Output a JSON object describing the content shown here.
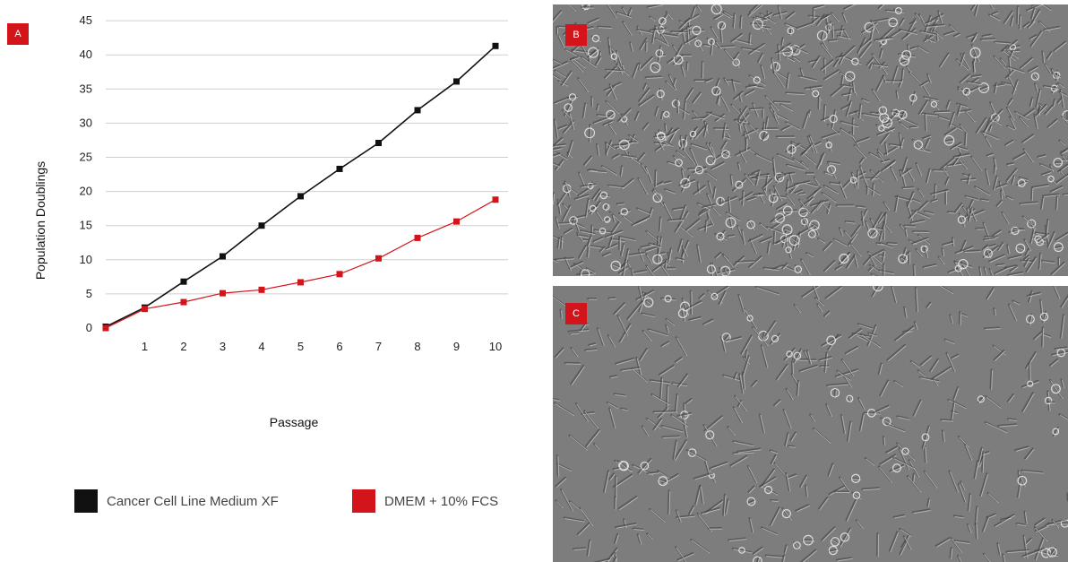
{
  "panels": {
    "a_label": "A",
    "b_label": "B",
    "c_label": "C"
  },
  "colors": {
    "series_1": "#111111",
    "series_2": "#d4141b",
    "badge": "#d4141b",
    "grid": "#cfcfcf"
  },
  "chart_data": {
    "type": "line",
    "xlabel": "Passage",
    "ylabel": "Population Doublings",
    "ylim": [
      0,
      45
    ],
    "yticks": [
      0,
      5,
      10,
      15,
      20,
      25,
      30,
      35,
      40,
      45
    ],
    "xticks": [
      1,
      2,
      3,
      4,
      5,
      6,
      7,
      8,
      9,
      10
    ],
    "xlim": [
      0,
      10
    ],
    "grid": "horizontal",
    "legend": "bottom",
    "series": [
      {
        "name": "Cancer Cell Line Medium XF",
        "color": "#111111",
        "x": [
          0,
          1,
          2,
          3,
          4,
          5,
          6,
          7,
          8,
          9,
          10
        ],
        "y": [
          0.2,
          3.0,
          6.8,
          10.5,
          15.0,
          19.3,
          23.3,
          27.1,
          31.9,
          36.1,
          41.3
        ]
      },
      {
        "name": "DMEM + 10% FCS",
        "color": "#d4141b",
        "x": [
          0,
          1,
          2,
          3,
          4,
          5,
          6,
          7,
          8,
          9,
          10
        ],
        "y": [
          0.0,
          2.8,
          3.8,
          5.1,
          5.6,
          6.7,
          7.9,
          10.2,
          13.2,
          15.6,
          18.8
        ]
      }
    ]
  },
  "images": {
    "b": "phase-contrast-micrograph-dense-culture",
    "c": "phase-contrast-micrograph-sparse-culture"
  }
}
